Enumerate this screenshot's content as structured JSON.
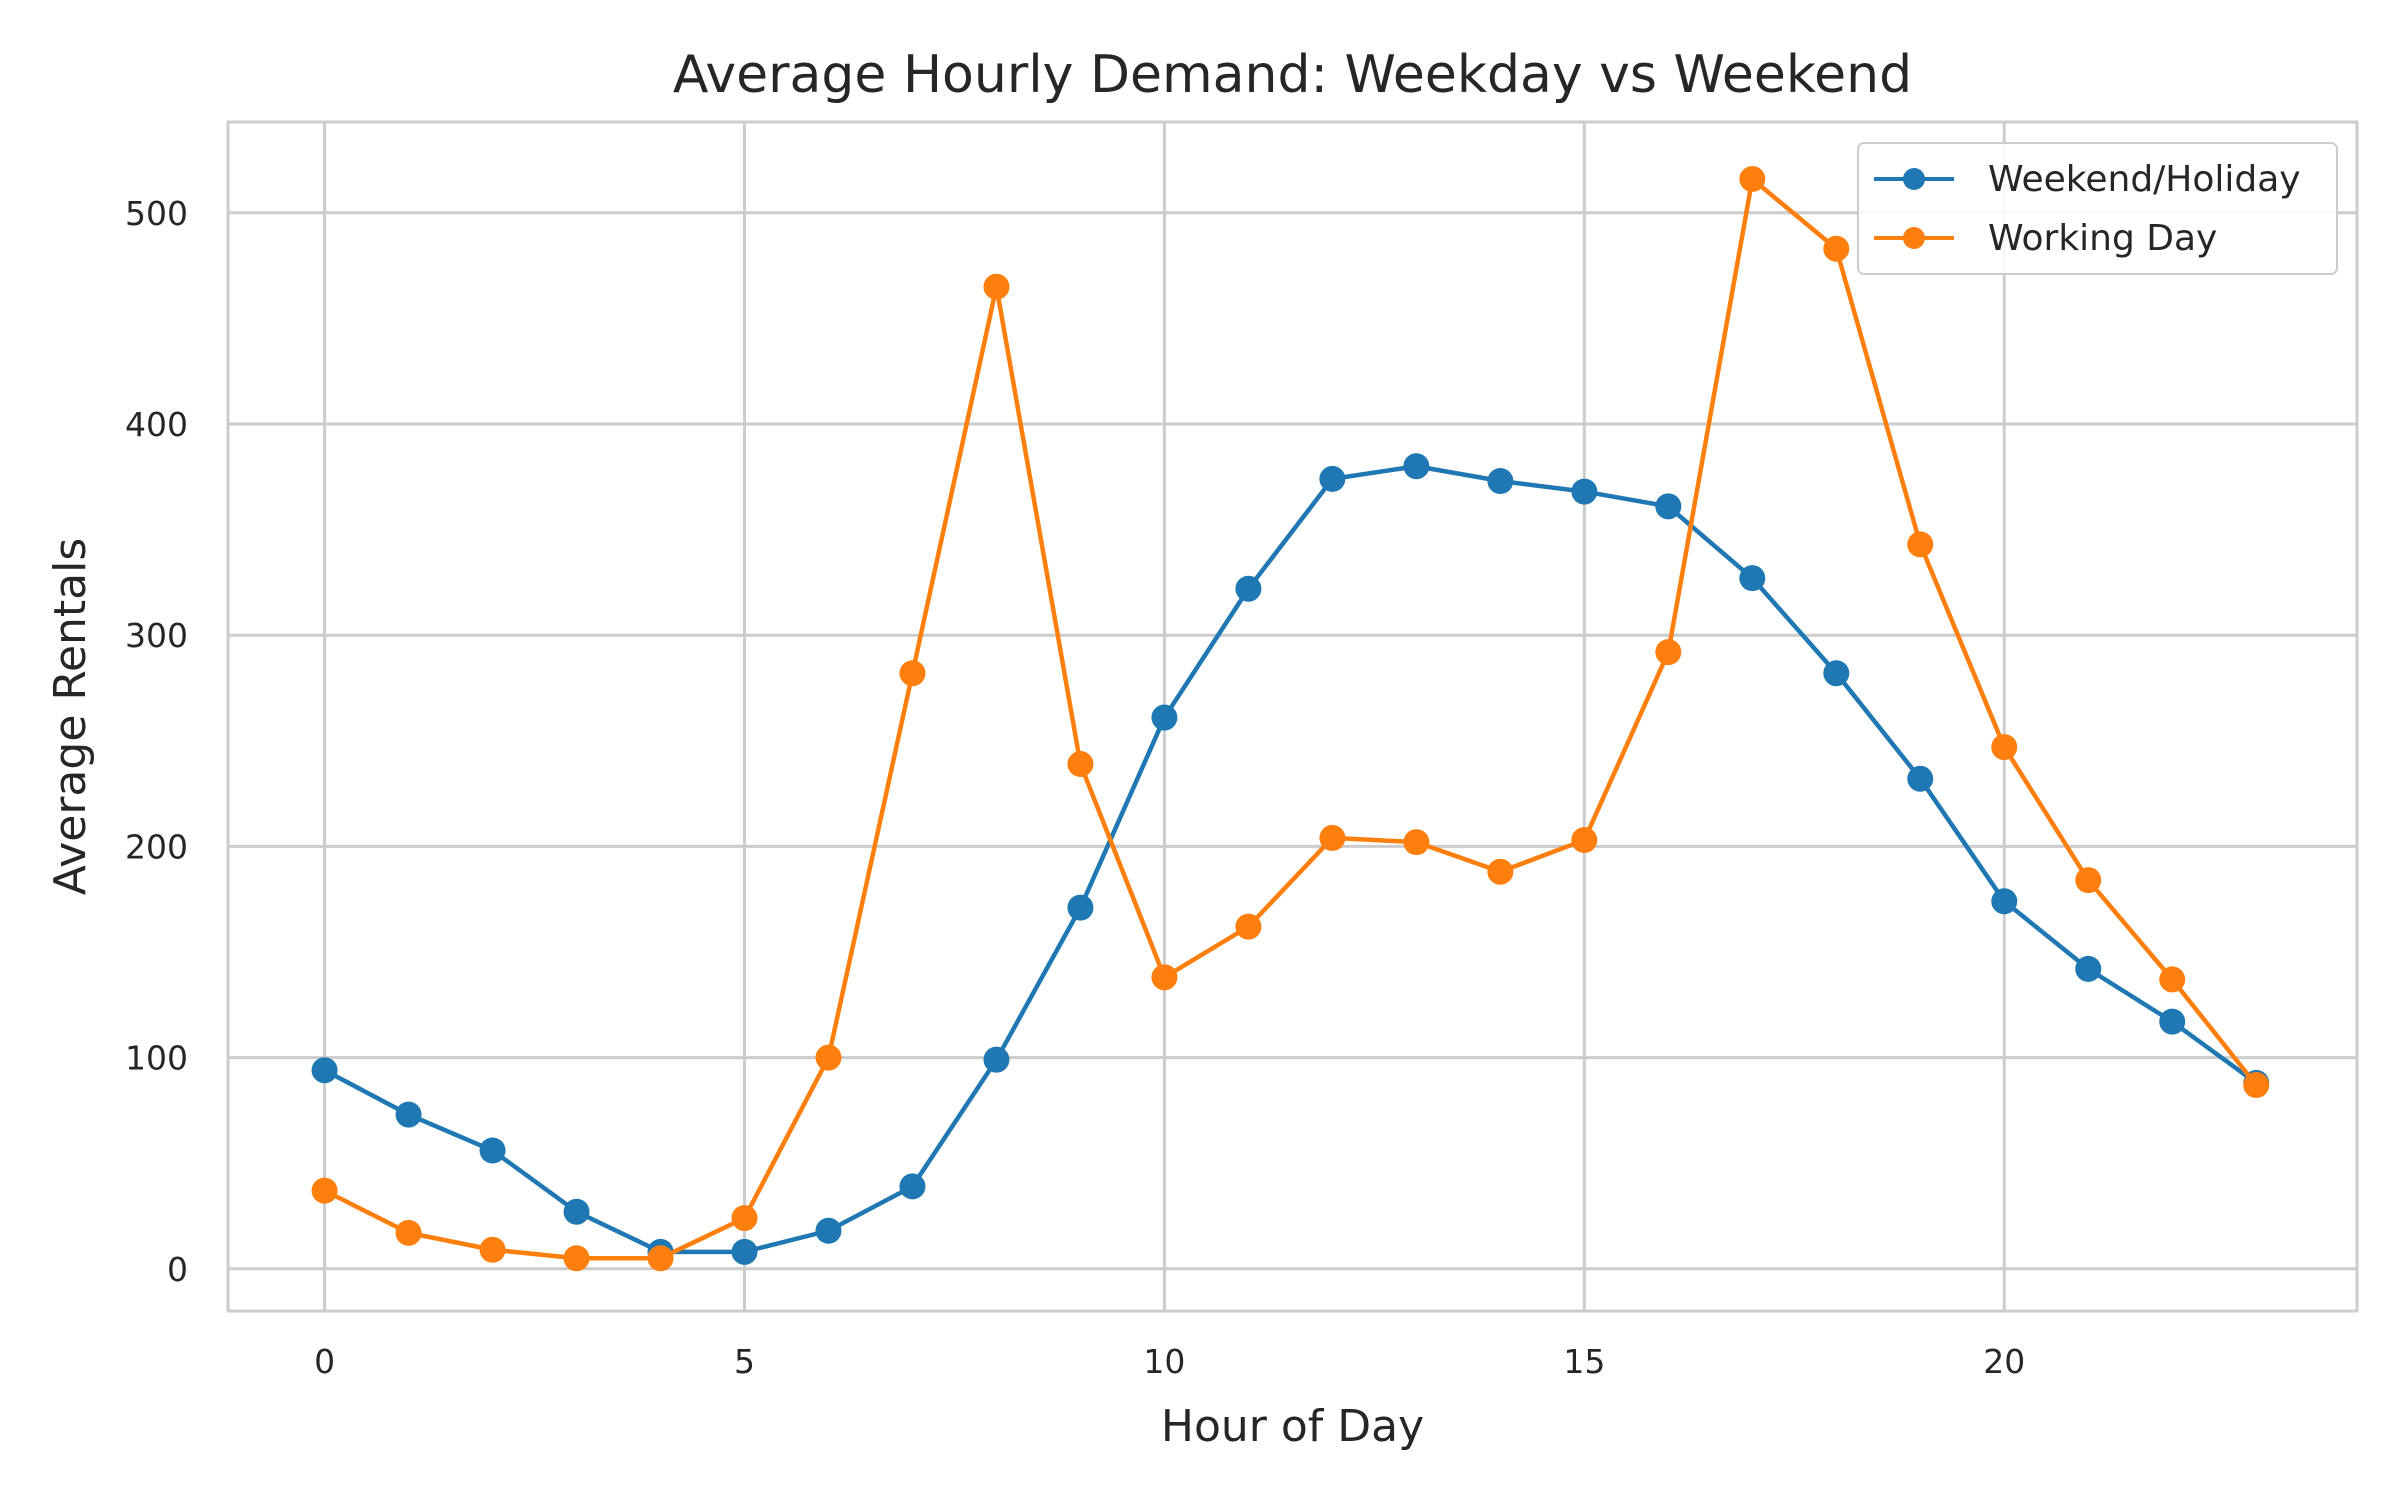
{
  "chart_data": {
    "type": "line",
    "title": "Average Hourly Demand: Weekday vs Weekend",
    "xlabel": "Hour of Day",
    "ylabel": "Average Rentals",
    "x": [
      0,
      1,
      2,
      3,
      4,
      5,
      6,
      7,
      8,
      9,
      10,
      11,
      12,
      13,
      14,
      15,
      16,
      17,
      18,
      19,
      20,
      21,
      22,
      23
    ],
    "xlim": [
      -1.15,
      24.2
    ],
    "ylim": [
      -20,
      543
    ],
    "xticks": [
      0,
      5,
      10,
      15,
      20
    ],
    "yticks": [
      0,
      100,
      200,
      300,
      400,
      500
    ],
    "grid": true,
    "legend_position": "top-right",
    "series": [
      {
        "name": "Weekend/Holiday",
        "color": "#1f77b4",
        "marker": "circle",
        "values": [
          94,
          73,
          56,
          27,
          8,
          8,
          18,
          39,
          99,
          171,
          261,
          322,
          374,
          380,
          373,
          368,
          361,
          327,
          282,
          232,
          174,
          142,
          117,
          88
        ]
      },
      {
        "name": "Working Day",
        "color": "#ff7f0e",
        "marker": "circle",
        "values": [
          37,
          17,
          9,
          5,
          5,
          24,
          100,
          282,
          465,
          239,
          138,
          162,
          204,
          202,
          188,
          203,
          292,
          516,
          483,
          343,
          247,
          184,
          137,
          87
        ]
      }
    ]
  }
}
